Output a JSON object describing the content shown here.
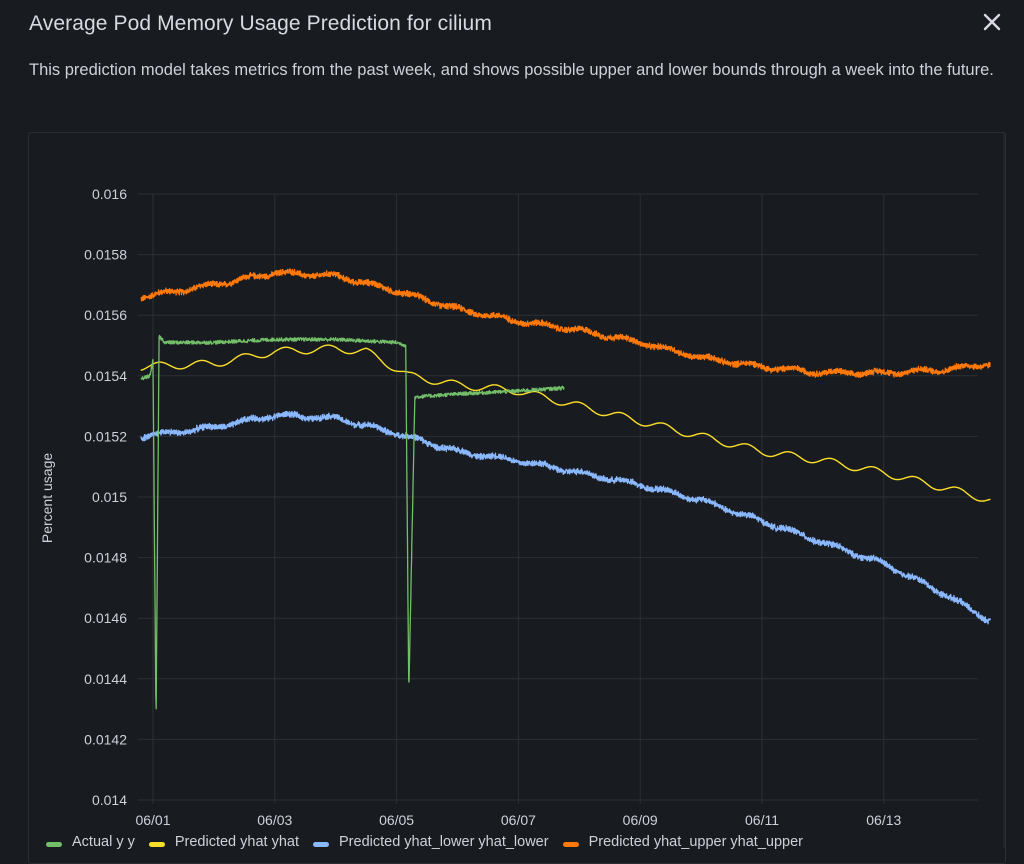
{
  "dialog": {
    "title": "Average Pod Memory Usage Prediction for cilium",
    "description": "This prediction model takes metrics from the past week, and shows possible upper and lower bounds through a week into the future.",
    "close_icon": "close-icon"
  },
  "chart_data": {
    "type": "line",
    "title": "",
    "xlabel": "",
    "ylabel": "Percent usage",
    "x_ticks": [
      "06/01",
      "06/03",
      "06/05",
      "06/07",
      "06/09",
      "06/11",
      "06/13"
    ],
    "x_range_days": [
      -0.2,
      13.75
    ],
    "y_ticks": [
      "0.016",
      "0.0158",
      "0.0156",
      "0.0154",
      "0.0152",
      "0.015",
      "0.0148",
      "0.0146",
      "0.0144",
      "0.0142",
      "0.014"
    ],
    "ylim": [
      0.014,
      0.016
    ],
    "grid": true,
    "legend": "bottom",
    "series": [
      {
        "name": "Actual y y",
        "color": "#73bf69",
        "x_days": [
          -0.2,
          -0.05,
          0.0,
          0.05,
          0.1,
          0.2,
          0.5,
          1.0,
          2.0,
          3.0,
          4.0,
          4.15,
          4.2,
          4.3,
          5.0,
          6.0,
          6.75
        ],
        "values": [
          0.01539,
          0.0154,
          0.01545,
          0.01425,
          0.01553,
          0.01551,
          0.01551,
          0.01551,
          0.01552,
          0.01552,
          0.01551,
          0.0155,
          0.01435,
          0.01533,
          0.01534,
          0.01535,
          0.01536
        ],
        "noise": 6e-06
      },
      {
        "name": "Predicted yhat yhat",
        "color": "#fade2a",
        "x_days": [
          -0.2,
          1.0,
          2.0,
          3.0,
          3.5,
          4.2,
          5.0,
          6.0,
          7.0,
          8.0,
          9.0,
          10.0,
          11.0,
          12.0,
          13.0,
          13.75
        ],
        "values": [
          0.01543,
          0.01544,
          0.01548,
          0.01549,
          0.01548,
          0.0154,
          0.01537,
          0.01535,
          0.0153,
          0.01525,
          0.0152,
          0.01515,
          0.01512,
          0.01508,
          0.01503,
          0.01499
        ],
        "noise": 0
      },
      {
        "name": "Predicted yhat_lower yhat_lower",
        "color": "#8ab8ff",
        "x_days": [
          -0.2,
          1.0,
          2.0,
          3.0,
          4.0,
          5.0,
          6.0,
          7.0,
          8.0,
          9.0,
          10.0,
          11.0,
          12.0,
          13.0,
          13.75
        ],
        "values": [
          0.0152,
          0.01523,
          0.01527,
          0.01526,
          0.01521,
          0.01515,
          0.01512,
          0.01508,
          0.01504,
          0.01499,
          0.01492,
          0.01485,
          0.01478,
          0.01468,
          0.01459
        ],
        "noise": 1.2e-05
      },
      {
        "name": "Predicted yhat_upper yhat_upper",
        "color": "#ff780a",
        "x_days": [
          -0.2,
          1.0,
          2.0,
          3.0,
          4.0,
          5.0,
          6.0,
          7.0,
          8.0,
          9.0,
          10.0,
          11.0,
          12.0,
          13.0,
          13.75
        ],
        "values": [
          0.01566,
          0.0157,
          0.01574,
          0.01573,
          0.01568,
          0.01562,
          0.01558,
          0.01555,
          0.01551,
          0.01546,
          0.01543,
          0.01541,
          0.01541,
          0.01542,
          0.01544
        ],
        "noise": 1.2e-05
      }
    ]
  }
}
